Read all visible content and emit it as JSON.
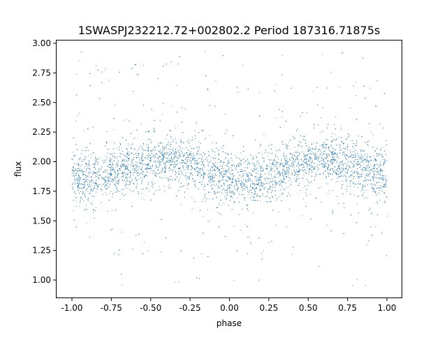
{
  "chart_data": {
    "type": "scatter",
    "title": "1SWASPJ232212.72+002802.2 Period 187316.71875s",
    "xlabel": "phase",
    "ylabel": "flux",
    "xlim": [
      -1.1,
      1.1
    ],
    "ylim": [
      0.85,
      3.02
    ],
    "grid": false,
    "legend": "none",
    "point_color": "#1f77b4",
    "x_ticks": [
      "-1.00",
      "-0.75",
      "-0.50",
      "-0.25",
      "0.00",
      "0.25",
      "0.50",
      "0.75",
      "1.00"
    ],
    "x_tick_values": [
      -1,
      -0.75,
      -0.5,
      -0.25,
      0,
      0.25,
      0.5,
      0.75,
      1
    ],
    "y_ticks": [
      "1.00",
      "1.25",
      "1.50",
      "1.75",
      "2.00",
      "2.25",
      "2.50",
      "2.75",
      "3.00"
    ],
    "y_tick_values": [
      1,
      1.25,
      1.5,
      1.75,
      2,
      2.25,
      2.5,
      2.75,
      3
    ],
    "binned_median_flux": {
      "phase": [
        -1.0,
        -0.9,
        -0.8,
        -0.7,
        -0.6,
        -0.5,
        -0.4,
        -0.3,
        -0.2,
        -0.1,
        0.0,
        0.1,
        0.2,
        0.3,
        0.4,
        0.5,
        0.6,
        0.7,
        0.8,
        0.9,
        1.0
      ],
      "flux": [
        1.86,
        1.85,
        1.88,
        1.93,
        1.97,
        2.0,
        2.02,
        2.0,
        1.96,
        1.9,
        1.85,
        1.84,
        1.87,
        1.92,
        1.97,
        2.0,
        2.03,
        2.0,
        1.96,
        1.9,
        1.87
      ]
    },
    "scatter_sd": 0.1,
    "flux_range": [
      0.95,
      2.95
    ]
  }
}
